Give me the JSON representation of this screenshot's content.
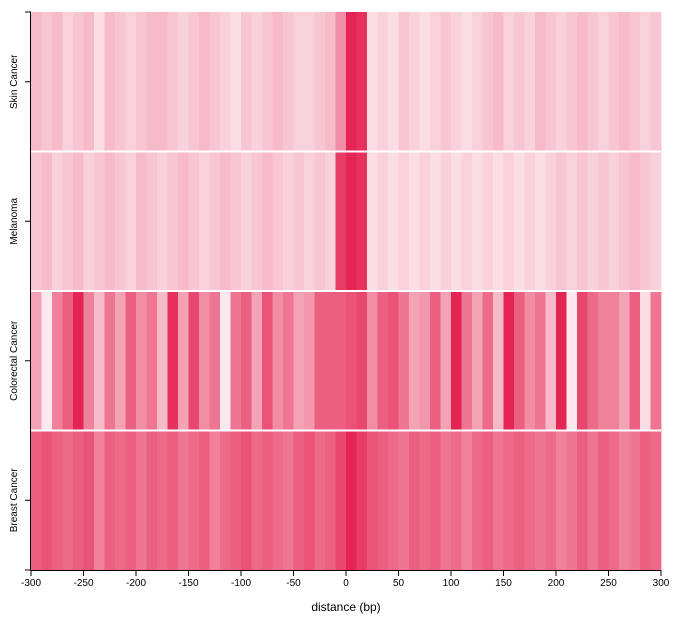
{
  "chart_data": {
    "type": "heatmap",
    "title": "",
    "xlabel": "distance (bp)",
    "ylabel": "",
    "xlim": [
      -300,
      300
    ],
    "xticks": [
      -300,
      -250,
      -200,
      -150,
      -100,
      -50,
      0,
      50,
      100,
      150,
      200,
      250,
      300
    ],
    "bin_width": 10,
    "rows": [
      "Skin Cancer",
      "Melanoma",
      "Colorectal Cancer",
      "Breast Cancer"
    ],
    "color_range": [
      "#ffffff",
      "#e31a4a"
    ],
    "value_range": [
      0,
      1
    ],
    "grid": false,
    "values": [
      [
        0.3,
        0.25,
        0.3,
        0.2,
        0.25,
        0.3,
        0.15,
        0.3,
        0.25,
        0.2,
        0.25,
        0.3,
        0.3,
        0.25,
        0.2,
        0.25,
        0.3,
        0.25,
        0.2,
        0.15,
        0.25,
        0.2,
        0.25,
        0.3,
        0.25,
        0.2,
        0.2,
        0.25,
        0.3,
        0.5,
        0.95,
        0.9,
        0.15,
        0.2,
        0.15,
        0.25,
        0.2,
        0.15,
        0.2,
        0.25,
        0.2,
        0.15,
        0.2,
        0.25,
        0.3,
        0.2,
        0.25,
        0.2,
        0.3,
        0.25,
        0.2,
        0.25,
        0.3,
        0.25,
        0.2,
        0.25,
        0.3,
        0.25,
        0.2,
        0.25
      ],
      [
        0.25,
        0.3,
        0.2,
        0.25,
        0.3,
        0.2,
        0.25,
        0.3,
        0.25,
        0.2,
        0.3,
        0.25,
        0.2,
        0.25,
        0.3,
        0.25,
        0.2,
        0.25,
        0.3,
        0.25,
        0.2,
        0.25,
        0.3,
        0.25,
        0.2,
        0.25,
        0.2,
        0.25,
        0.2,
        0.85,
        0.95,
        0.9,
        0.15,
        0.2,
        0.15,
        0.2,
        0.15,
        0.2,
        0.15,
        0.2,
        0.15,
        0.2,
        0.15,
        0.2,
        0.15,
        0.2,
        0.15,
        0.2,
        0.15,
        0.2,
        0.25,
        0.2,
        0.25,
        0.2,
        0.25,
        0.2,
        0.25,
        0.3,
        0.25,
        0.2
      ],
      [
        0.4,
        0.1,
        0.55,
        0.7,
        0.95,
        0.55,
        0.3,
        0.6,
        0.4,
        0.7,
        0.5,
        0.6,
        0.3,
        0.9,
        0.4,
        0.8,
        0.5,
        0.6,
        0.1,
        0.6,
        0.7,
        0.4,
        0.75,
        0.5,
        0.6,
        0.4,
        0.45,
        0.7,
        0.7,
        0.7,
        0.75,
        0.8,
        0.5,
        0.7,
        0.75,
        0.6,
        0.4,
        0.45,
        0.7,
        0.4,
        0.95,
        0.6,
        0.4,
        0.65,
        0.3,
        0.95,
        0.7,
        0.5,
        0.6,
        0.3,
        0.95,
        0.1,
        0.8,
        0.65,
        0.55,
        0.55,
        0.4,
        0.7,
        0.15,
        0.6
      ],
      [
        0.7,
        0.75,
        0.7,
        0.65,
        0.7,
        0.75,
        0.55,
        0.7,
        0.65,
        0.7,
        0.6,
        0.7,
        0.65,
        0.7,
        0.6,
        0.65,
        0.7,
        0.55,
        0.65,
        0.7,
        0.75,
        0.65,
        0.7,
        0.65,
        0.6,
        0.7,
        0.75,
        0.65,
        0.7,
        0.8,
        0.95,
        0.85,
        0.75,
        0.7,
        0.65,
        0.6,
        0.7,
        0.65,
        0.7,
        0.6,
        0.65,
        0.55,
        0.65,
        0.7,
        0.6,
        0.65,
        0.7,
        0.65,
        0.6,
        0.65,
        0.55,
        0.6,
        0.7,
        0.6,
        0.7,
        0.65,
        0.55,
        0.6,
        0.7,
        0.65
      ]
    ]
  }
}
